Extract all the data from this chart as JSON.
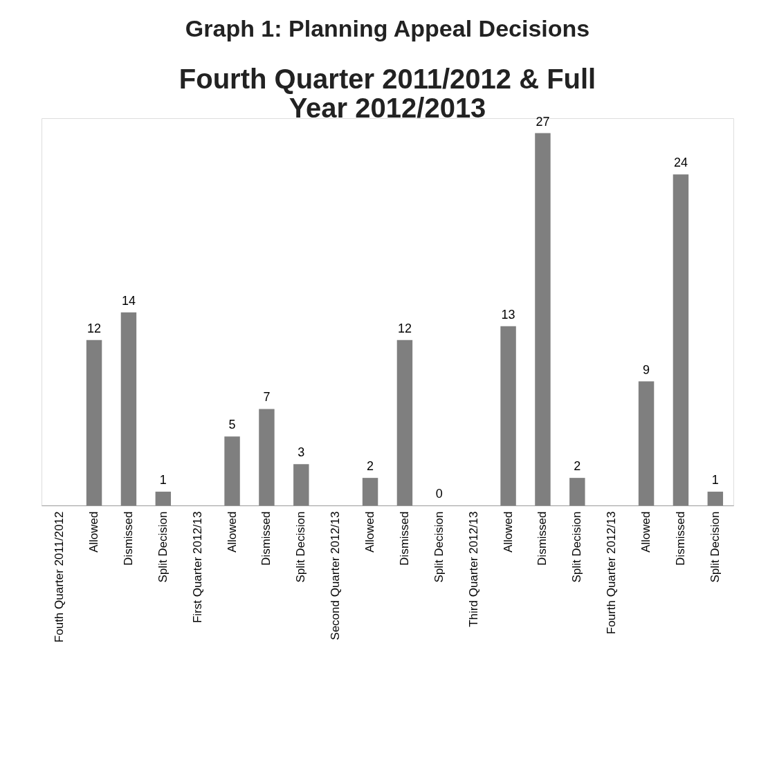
{
  "chart_data": {
    "type": "bar",
    "title": "Graph 1: Planning Appeal Decisions",
    "subtitle": "Fourth Quarter 2011/2012 & Full Year 2012/2013",
    "categories": [
      "Fouth Quarter 2011/2012",
      "Allowed",
      "Dismissed",
      "Split Decision",
      "First Quarter 2012/13",
      "Allowed",
      "Dismissed",
      "Split Decision",
      "Second Quarter 2012/13",
      "Allowed",
      "Dismissed",
      "Split Decision",
      "Third Quarter 2012/13",
      "Allowed",
      "Dismissed",
      "Split Decision",
      "Fourth Quarter 2012/13",
      "Allowed",
      "Dismissed",
      "Split Decision"
    ],
    "values": [
      null,
      12,
      14,
      1,
      null,
      5,
      7,
      3,
      null,
      2,
      12,
      0,
      null,
      13,
      27,
      2,
      null,
      9,
      24,
      1
    ],
    "color": "#7f7f7f",
    "data_labels": true
  }
}
